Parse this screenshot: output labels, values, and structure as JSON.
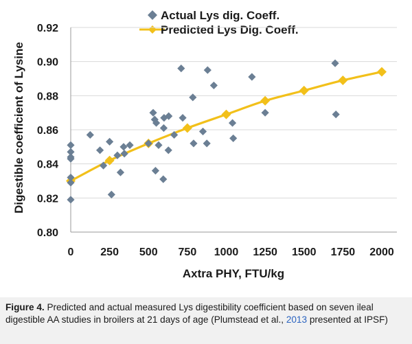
{
  "chart_data": {
    "type": "scatter",
    "title": "",
    "xlabel": "Axtra PHY, FTU/kg",
    "ylabel": "Digestible coefficient of Lysine",
    "xlim": [
      0,
      2000
    ],
    "ylim": [
      0.8,
      0.92
    ],
    "x_ticks": [
      0,
      250,
      500,
      750,
      1000,
      1250,
      1500,
      1750,
      2000
    ],
    "x_tick_labels": [
      "0",
      "250",
      "500",
      "750",
      "1000",
      "1250",
      "1500",
      "1750",
      "2000"
    ],
    "y_ticks": [
      0.8,
      0.82,
      0.84,
      0.86,
      0.88,
      0.9,
      0.92
    ],
    "y_tick_labels": [
      "0.80",
      "0.82",
      "0.84",
      "0.86",
      "0.88",
      "0.90",
      "0.92"
    ],
    "legend_position": "top",
    "series": [
      {
        "name": "Actual Lys dig. Coeff.",
        "kind": "scatter",
        "color": "#6b7f94",
        "points": [
          [
            0,
            0.851
          ],
          [
            0,
            0.847
          ],
          [
            0,
            0.844
          ],
          [
            0,
            0.843
          ],
          [
            0,
            0.832
          ],
          [
            0,
            0.829
          ],
          [
            0,
            0.819
          ],
          [
            125,
            0.857
          ],
          [
            188,
            0.848
          ],
          [
            210,
            0.839
          ],
          [
            250,
            0.853
          ],
          [
            262,
            0.822
          ],
          [
            300,
            0.845
          ],
          [
            320,
            0.835
          ],
          [
            340,
            0.85
          ],
          [
            345,
            0.846
          ],
          [
            380,
            0.851
          ],
          [
            500,
            0.852
          ],
          [
            530,
            0.87
          ],
          [
            540,
            0.866
          ],
          [
            550,
            0.864
          ],
          [
            545,
            0.836
          ],
          [
            565,
            0.851
          ],
          [
            595,
            0.831
          ],
          [
            598,
            0.861
          ],
          [
            600,
            0.867
          ],
          [
            630,
            0.868
          ],
          [
            628,
            0.848
          ],
          [
            665,
            0.857
          ],
          [
            710,
            0.896
          ],
          [
            720,
            0.867
          ],
          [
            785,
            0.879
          ],
          [
            790,
            0.852
          ],
          [
            850,
            0.859
          ],
          [
            875,
            0.852
          ],
          [
            880,
            0.895
          ],
          [
            920,
            0.886
          ],
          [
            1040,
            0.864
          ],
          [
            1045,
            0.855
          ],
          [
            1165,
            0.891
          ],
          [
            1250,
            0.87
          ],
          [
            1700,
            0.899
          ],
          [
            1705,
            0.869
          ]
        ]
      },
      {
        "name": "Predicted Lys Dig. Coeff.",
        "kind": "line",
        "color": "#f2c01a",
        "points": [
          [
            0,
            0.83
          ],
          [
            250,
            0.842
          ],
          [
            500,
            0.852
          ],
          [
            750,
            0.861
          ],
          [
            1000,
            0.869
          ],
          [
            1250,
            0.877
          ],
          [
            1500,
            0.883
          ],
          [
            1750,
            0.889
          ],
          [
            2000,
            0.894
          ]
        ]
      }
    ]
  },
  "caption": {
    "label": "Figure 4.",
    "text_before": "Predicted and actual measured Lys digestibility coefficient based on seven ileal digestible AA studies in broilers at 21 days of age (Plumstead et al., ",
    "year_link": "2013",
    "text_after": " presented at IPSF)"
  }
}
